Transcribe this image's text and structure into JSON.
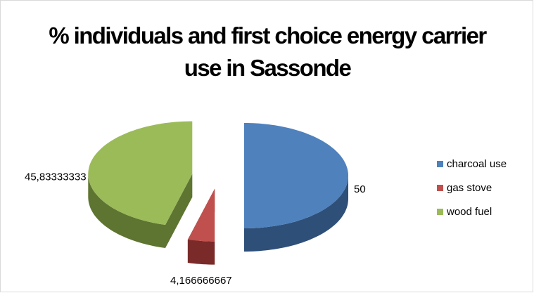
{
  "chart_data": {
    "type": "pie3d",
    "title": "% individuals and first choice energy carrier use in Sassonde",
    "categories": [
      "charcoal use",
      "gas stove",
      "wood fuel"
    ],
    "values": [
      50,
      4.166666667,
      45.83333333
    ],
    "value_labels": [
      "50",
      "4,166666667",
      "45,83333333"
    ],
    "colors": [
      "#4f81bd",
      "#c0504d",
      "#9bbb59"
    ],
    "side_colors": [
      "#2e4f78",
      "#7a2b29",
      "#5e7431"
    ],
    "legend": "right"
  }
}
